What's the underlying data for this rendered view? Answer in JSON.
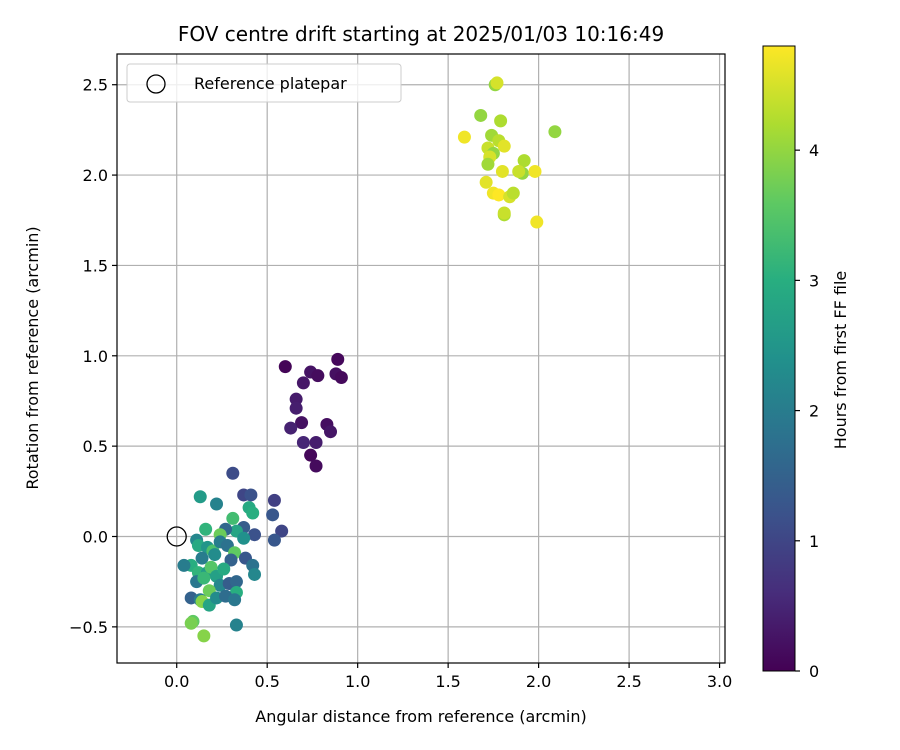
{
  "chart_data": {
    "type": "scatter",
    "title": "FOV centre drift starting at 2025/01/03 10:16:49",
    "xlabel": "Angular distance from reference (arcmin)",
    "ylabel": "Rotation from reference (arcmin)",
    "xlim": [
      -0.33,
      3.03
    ],
    "ylim": [
      -0.7,
      2.67
    ],
    "xticks": [
      0.0,
      0.5,
      1.0,
      1.5,
      2.0,
      2.5,
      3.0
    ],
    "xtick_labels": [
      "0.0",
      "0.5",
      "1.0",
      "1.5",
      "2.0",
      "2.5",
      "3.0"
    ],
    "yticks": [
      -0.5,
      0.0,
      0.5,
      1.0,
      1.5,
      2.0,
      2.5
    ],
    "ytick_labels": [
      "−0.5",
      "0.0",
      "0.5",
      "1.0",
      "1.5",
      "2.0",
      "2.5"
    ],
    "grid": true,
    "colormap": "viridis",
    "colorbar": {
      "label": "Hours from first FF file",
      "range": [
        0,
        4.8
      ],
      "ticks": [
        0,
        1,
        2,
        3,
        4
      ],
      "tick_labels": [
        "0",
        "1",
        "2",
        "3",
        "4"
      ]
    },
    "legend": {
      "placement": "top-left",
      "entries": [
        {
          "label": "Reference platepar",
          "marker": "open-circle"
        }
      ]
    },
    "reference_point": {
      "x": 0.0,
      "y": 0.0
    },
    "points": [
      {
        "x": 0.6,
        "y": 0.94,
        "c": 0.05
      },
      {
        "x": 0.89,
        "y": 0.98,
        "c": 0.1
      },
      {
        "x": 0.74,
        "y": 0.91,
        "c": 0.25
      },
      {
        "x": 0.78,
        "y": 0.89,
        "c": 0.15
      },
      {
        "x": 0.88,
        "y": 0.9,
        "c": 0.2
      },
      {
        "x": 0.91,
        "y": 0.88,
        "c": 0.12
      },
      {
        "x": 0.7,
        "y": 0.85,
        "c": 0.3
      },
      {
        "x": 0.66,
        "y": 0.76,
        "c": 0.35
      },
      {
        "x": 0.66,
        "y": 0.71,
        "c": 0.4
      },
      {
        "x": 0.69,
        "y": 0.63,
        "c": 0.22
      },
      {
        "x": 0.83,
        "y": 0.62,
        "c": 0.18
      },
      {
        "x": 0.85,
        "y": 0.58,
        "c": 0.28
      },
      {
        "x": 0.63,
        "y": 0.6,
        "c": 0.45
      },
      {
        "x": 0.7,
        "y": 0.52,
        "c": 0.5
      },
      {
        "x": 0.77,
        "y": 0.52,
        "c": 0.38
      },
      {
        "x": 0.74,
        "y": 0.45,
        "c": 0.08
      },
      {
        "x": 0.77,
        "y": 0.39,
        "c": 0.14
      },
      {
        "x": 0.31,
        "y": 0.35,
        "c": 1.1
      },
      {
        "x": 0.37,
        "y": 0.23,
        "c": 1.0
      },
      {
        "x": 0.41,
        "y": 0.23,
        "c": 1.2
      },
      {
        "x": 0.54,
        "y": 0.2,
        "c": 0.9
      },
      {
        "x": 0.4,
        "y": 0.16,
        "c": 2.9
      },
      {
        "x": 0.42,
        "y": 0.13,
        "c": 3.0
      },
      {
        "x": 0.53,
        "y": 0.12,
        "c": 1.3
      },
      {
        "x": 0.13,
        "y": 0.22,
        "c": 2.6
      },
      {
        "x": 0.22,
        "y": 0.18,
        "c": 2.1
      },
      {
        "x": 0.31,
        "y": 0.1,
        "c": 3.3
      },
      {
        "x": 0.58,
        "y": 0.03,
        "c": 1.0
      },
      {
        "x": 0.54,
        "y": -0.02,
        "c": 1.3
      },
      {
        "x": 0.37,
        "y": 0.05,
        "c": 1.4
      },
      {
        "x": 0.43,
        "y": 0.01,
        "c": 1.2
      },
      {
        "x": 0.33,
        "y": 0.03,
        "c": 2.8
      },
      {
        "x": 0.27,
        "y": 0.04,
        "c": 1.6
      },
      {
        "x": 0.24,
        "y": 0.01,
        "c": 3.7
      },
      {
        "x": 0.16,
        "y": 0.04,
        "c": 3.1
      },
      {
        "x": 0.11,
        "y": -0.02,
        "c": 2.2
      },
      {
        "x": 0.12,
        "y": -0.05,
        "c": 2.9
      },
      {
        "x": 0.17,
        "y": -0.06,
        "c": 2.5
      },
      {
        "x": 0.2,
        "y": -0.08,
        "c": 3.4
      },
      {
        "x": 0.24,
        "y": -0.03,
        "c": 2.0
      },
      {
        "x": 0.28,
        "y": -0.05,
        "c": 1.8
      },
      {
        "x": 0.32,
        "y": -0.09,
        "c": 3.6
      },
      {
        "x": 0.37,
        "y": -0.01,
        "c": 2.4
      },
      {
        "x": 0.14,
        "y": -0.12,
        "c": 2.0
      },
      {
        "x": 0.21,
        "y": -0.1,
        "c": 2.3
      },
      {
        "x": 0.3,
        "y": -0.13,
        "c": 1.5
      },
      {
        "x": 0.38,
        "y": -0.12,
        "c": 1.3
      },
      {
        "x": 0.42,
        "y": -0.16,
        "c": 1.8
      },
      {
        "x": 0.43,
        "y": -0.21,
        "c": 2.2
      },
      {
        "x": 0.08,
        "y": -0.16,
        "c": 3.0
      },
      {
        "x": 0.04,
        "y": -0.16,
        "c": 2.0
      },
      {
        "x": 0.12,
        "y": -0.2,
        "c": 3.1
      },
      {
        "x": 0.17,
        "y": -0.2,
        "c": 2.6
      },
      {
        "x": 0.19,
        "y": -0.17,
        "c": 3.5
      },
      {
        "x": 0.22,
        "y": -0.22,
        "c": 2.7
      },
      {
        "x": 0.26,
        "y": -0.18,
        "c": 2.9
      },
      {
        "x": 0.11,
        "y": -0.25,
        "c": 1.9
      },
      {
        "x": 0.15,
        "y": -0.23,
        "c": 3.2
      },
      {
        "x": 0.24,
        "y": -0.27,
        "c": 2.2
      },
      {
        "x": 0.29,
        "y": -0.26,
        "c": 1.4
      },
      {
        "x": 0.33,
        "y": -0.25,
        "c": 1.6
      },
      {
        "x": 0.33,
        "y": -0.31,
        "c": 3.0
      },
      {
        "x": 0.18,
        "y": -0.3,
        "c": 3.7
      },
      {
        "x": 0.08,
        "y": -0.34,
        "c": 1.5
      },
      {
        "x": 0.13,
        "y": -0.35,
        "c": 2.0
      },
      {
        "x": 0.14,
        "y": -0.36,
        "c": 3.9
      },
      {
        "x": 0.18,
        "y": -0.38,
        "c": 2.8
      },
      {
        "x": 0.22,
        "y": -0.34,
        "c": 2.3
      },
      {
        "x": 0.27,
        "y": -0.33,
        "c": 1.7
      },
      {
        "x": 0.32,
        "y": -0.35,
        "c": 1.9
      },
      {
        "x": 0.09,
        "y": -0.47,
        "c": 3.6
      },
      {
        "x": 0.08,
        "y": -0.48,
        "c": 3.8
      },
      {
        "x": 0.33,
        "y": -0.49,
        "c": 2.1
      },
      {
        "x": 0.15,
        "y": -0.55,
        "c": 3.9
      },
      {
        "x": 1.76,
        "y": 2.5,
        "c": 4.0
      },
      {
        "x": 1.77,
        "y": 2.51,
        "c": 4.5
      },
      {
        "x": 1.68,
        "y": 2.33,
        "c": 4.0
      },
      {
        "x": 1.79,
        "y": 2.3,
        "c": 4.2
      },
      {
        "x": 2.09,
        "y": 2.24,
        "c": 4.0
      },
      {
        "x": 1.59,
        "y": 2.21,
        "c": 4.7
      },
      {
        "x": 1.74,
        "y": 2.22,
        "c": 4.1
      },
      {
        "x": 1.78,
        "y": 2.19,
        "c": 4.3
      },
      {
        "x": 1.72,
        "y": 2.15,
        "c": 4.4
      },
      {
        "x": 1.81,
        "y": 2.16,
        "c": 4.6
      },
      {
        "x": 1.75,
        "y": 2.12,
        "c": 4.0
      },
      {
        "x": 1.73,
        "y": 2.1,
        "c": 4.5
      },
      {
        "x": 1.72,
        "y": 2.06,
        "c": 4.1
      },
      {
        "x": 1.92,
        "y": 2.08,
        "c": 4.2
      },
      {
        "x": 1.91,
        "y": 2.01,
        "c": 4.0
      },
      {
        "x": 1.8,
        "y": 2.02,
        "c": 4.6
      },
      {
        "x": 1.89,
        "y": 2.02,
        "c": 4.4
      },
      {
        "x": 1.98,
        "y": 2.02,
        "c": 4.7
      },
      {
        "x": 1.71,
        "y": 1.96,
        "c": 4.6
      },
      {
        "x": 1.75,
        "y": 1.9,
        "c": 4.7
      },
      {
        "x": 1.78,
        "y": 1.89,
        "c": 4.8
      },
      {
        "x": 1.84,
        "y": 1.88,
        "c": 4.5
      },
      {
        "x": 1.86,
        "y": 1.9,
        "c": 4.3
      },
      {
        "x": 1.81,
        "y": 1.78,
        "c": 4.2
      },
      {
        "x": 1.81,
        "y": 1.79,
        "c": 4.4
      },
      {
        "x": 1.99,
        "y": 1.74,
        "c": 4.7
      }
    ]
  }
}
